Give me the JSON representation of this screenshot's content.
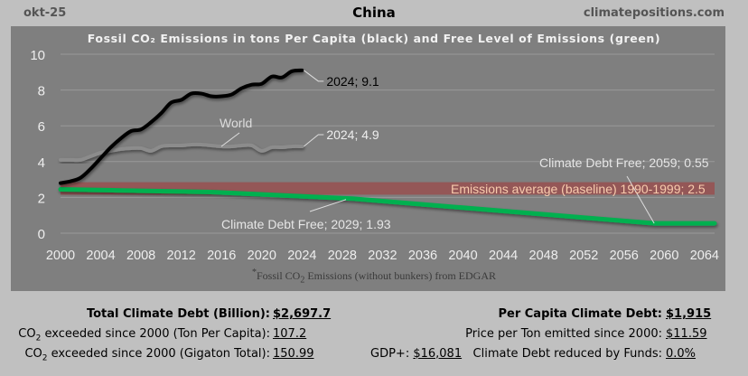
{
  "header": {
    "date": "okt-25",
    "title": "China",
    "site": "climatepositions.com"
  },
  "chart_data": {
    "type": "line",
    "title": "Fossil CO₂ Emissions in tons Per Capita (black) and Free Level of Emissions (green)",
    "xlabel": "",
    "ylabel": "",
    "xlim": [
      2000,
      2065
    ],
    "ylim": [
      0,
      10
    ],
    "x_ticks": [
      "2000",
      "2004",
      "2008",
      "2012",
      "2016",
      "2020",
      "2024",
      "2028",
      "2032",
      "2036",
      "2040",
      "2044",
      "2048",
      "2052",
      "2056",
      "2060",
      "2064"
    ],
    "y_ticks": [
      "0",
      "2",
      "4",
      "6",
      "8",
      "10"
    ],
    "grid": true,
    "series": [
      {
        "name": "China",
        "color": "#000000",
        "x": [
          2000,
          2001,
          2002,
          2003,
          2004,
          2005,
          2006,
          2007,
          2008,
          2009,
          2010,
          2011,
          2012,
          2013,
          2014,
          2015,
          2016,
          2017,
          2018,
          2019,
          2020,
          2021,
          2022,
          2023,
          2024
        ],
        "values": [
          2.8,
          2.9,
          3.1,
          3.6,
          4.2,
          4.8,
          5.3,
          5.7,
          5.8,
          6.2,
          6.7,
          7.3,
          7.45,
          7.8,
          7.8,
          7.65,
          7.65,
          7.75,
          8.1,
          8.3,
          8.35,
          8.75,
          8.7,
          9.05,
          9.1
        ]
      },
      {
        "name": "World",
        "color": "#8c8c8c",
        "x": [
          2000,
          2001,
          2002,
          2003,
          2004,
          2005,
          2006,
          2007,
          2008,
          2009,
          2010,
          2011,
          2012,
          2013,
          2014,
          2015,
          2016,
          2017,
          2018,
          2019,
          2020,
          2021,
          2022,
          2023,
          2024
        ],
        "values": [
          4.1,
          4.1,
          4.1,
          4.3,
          4.5,
          4.6,
          4.7,
          4.75,
          4.75,
          4.6,
          4.85,
          4.9,
          4.9,
          4.95,
          4.95,
          4.9,
          4.85,
          4.85,
          4.9,
          4.9,
          4.6,
          4.8,
          4.8,
          4.85,
          4.85
        ]
      },
      {
        "name": "Climate Debt Free",
        "color": "#00b050",
        "x": [
          2000,
          2015,
          2029,
          2059,
          2065
        ],
        "values": [
          2.45,
          2.3,
          1.93,
          0.55,
          0.55
        ]
      }
    ],
    "band": {
      "name": "Emissions average (baseline) 1990-1999",
      "value": 2.5,
      "range": [
        2.15,
        2.85
      ],
      "color": "#985050"
    },
    "annotations": [
      {
        "text": "2024; 9.1",
        "x": 2024,
        "y": 9.1
      },
      {
        "text": "2024; 4.9",
        "x": 2024,
        "y": 4.85
      },
      {
        "text": "World",
        "x": 2016,
        "y": 4.85
      },
      {
        "text": "Climate Debt Free; 2029; 1.93",
        "x": 2029,
        "y": 1.93
      },
      {
        "text": "Climate Debt Free; 2059; 0.55",
        "x": 2059,
        "y": 0.55
      },
      {
        "text": "Emissions average (baseline) 1990-1999; 2.5",
        "x": 2050,
        "y": 2.5
      }
    ],
    "footnote_star": "*",
    "footnote": "Fossil CO",
    "footnote_sub": "2",
    "footnote_rest": " Emissions (without bunkers) from EDGAR"
  },
  "stats": {
    "total_debt_label": "Total Climate Debt (Billion):",
    "total_debt_value": "$2,697.7",
    "co2_pc_label_pre": "CO",
    "co2_pc_label_sub": "2",
    "co2_pc_label_rest": " exceeded since 2000 (Ton Per Capita):",
    "co2_pc_value": "107.2",
    "co2_gt_label_pre": "CO",
    "co2_gt_label_sub": "2",
    "co2_gt_label_rest": " exceeded since 2000 (Gigaton Total):",
    "co2_gt_value": "150.99",
    "gdp_label": "GDP+:",
    "gdp_value": "$16,081",
    "per_capita_label": "Per Capita Climate Debt:",
    "per_capita_value": "$1,915",
    "price_label": "Price per Ton emitted since 2000:",
    "price_value": "$11.59",
    "funds_label": "Climate Debt reduced by Funds:",
    "funds_value": "0.0%"
  }
}
